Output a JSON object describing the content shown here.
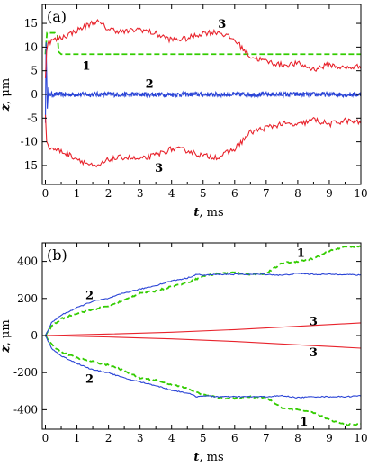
{
  "colors": {
    "red": "#e8232c",
    "green": "#33cc00",
    "blue": "#2a44d6"
  },
  "chart_data": [
    {
      "panel": "(a)",
      "type": "line",
      "xlabel_var": "t",
      "xlabel_unit": ", ms",
      "ylabel_var": "z",
      "ylabel_unit": ", μm",
      "xlim": [
        -0.1,
        10
      ],
      "ylim": [
        -19,
        19
      ],
      "xticks": [
        0,
        1,
        2,
        3,
        4,
        5,
        6,
        7,
        8,
        9,
        10
      ],
      "yticks": [
        -15,
        -10,
        -5,
        0,
        5,
        10,
        15
      ],
      "curve_labels": [
        {
          "text": "3",
          "x": 5.6,
          "y": 14.8
        },
        {
          "text": "1",
          "x": 1.3,
          "y": 6.0
        },
        {
          "text": "2",
          "x": 3.3,
          "y": 2.2
        },
        {
          "text": "3",
          "x": 3.6,
          "y": -15.6
        }
      ],
      "series": [
        {
          "label": "1",
          "color": "red",
          "dash": true,
          "x": [
            0.0,
            0.02,
            0.05,
            0.3,
            0.38,
            0.42,
            0.5,
            10
          ],
          "y": [
            8.5,
            10.5,
            13.0,
            13.0,
            12.5,
            9.0,
            8.5,
            8.5
          ],
          "color_key": "green"
        },
        {
          "label": "2",
          "color_key": "blue",
          "dash": false,
          "noisy": true,
          "base": 0,
          "amp": 0.5,
          "x": [
            0,
            10
          ],
          "y": [
            0,
            0
          ],
          "spike": [
            [
              0.0,
              -6.0
            ],
            [
              0.02,
              11.0
            ],
            [
              0.06,
              -3.0
            ],
            [
              0.1,
              1.5
            ]
          ]
        },
        {
          "label": "3",
          "color_key": "red",
          "dash": false,
          "noisy": true,
          "amp": 0.6,
          "x": [
            0.0,
            0.05,
            0.5,
            1.0,
            1.6,
            2.0,
            2.5,
            3.0,
            3.5,
            4.0,
            4.5,
            5.0,
            5.5,
            6.0,
            6.5,
            7.0,
            7.5,
            8.0,
            8.5,
            9.0,
            9.5,
            10.0
          ],
          "y": [
            4.0,
            11.0,
            12.0,
            13.5,
            15.5,
            13.8,
            13.2,
            13.8,
            12.8,
            11.5,
            11.8,
            13.0,
            13.2,
            11.5,
            8.0,
            7.0,
            6.2,
            6.5,
            5.3,
            6.3,
            5.5,
            6.0
          ]
        },
        {
          "label": "3",
          "color_key": "red",
          "dash": false,
          "noisy": true,
          "amp": 0.6,
          "x": [
            0.0,
            0.05,
            0.5,
            1.0,
            1.6,
            2.0,
            2.5,
            3.0,
            3.5,
            4.0,
            4.5,
            5.0,
            5.5,
            6.0,
            6.5,
            7.0,
            7.5,
            8.0,
            8.5,
            9.0,
            9.5,
            10.0
          ],
          "y": [
            -4.0,
            -11.0,
            -12.0,
            -13.5,
            -15.5,
            -13.8,
            -13.2,
            -13.8,
            -12.8,
            -11.5,
            -11.8,
            -13.0,
            -13.2,
            -11.5,
            -8.0,
            -7.0,
            -6.2,
            -6.5,
            -5.3,
            -6.3,
            -5.5,
            -6.0
          ]
        }
      ]
    },
    {
      "panel": "(b)",
      "type": "line",
      "xlabel_var": "t",
      "xlabel_unit": ", ms",
      "ylabel_var": "z",
      "ylabel_unit": ", μm",
      "xlim": [
        -0.1,
        10
      ],
      "ylim": [
        -505,
        500
      ],
      "xticks": [
        0,
        1,
        2,
        3,
        4,
        5,
        6,
        7,
        8,
        9,
        10
      ],
      "yticks": [
        -400,
        -200,
        0,
        200,
        400
      ],
      "curve_labels": [
        {
          "text": "1",
          "x": 8.1,
          "y": 445
        },
        {
          "text": "2",
          "x": 1.4,
          "y": 215
        },
        {
          "text": "3",
          "x": 8.5,
          "y": 75
        },
        {
          "text": "3",
          "x": 8.5,
          "y": -92
        },
        {
          "text": "2",
          "x": 1.4,
          "y": -235
        },
        {
          "text": "1",
          "x": 8.2,
          "y": -465
        }
      ],
      "series": [
        {
          "label": "1",
          "color_key": "green",
          "dash": true,
          "noisy": true,
          "amp": 4,
          "x": [
            0.0,
            0.2,
            0.5,
            1.0,
            1.5,
            2.0,
            2.5,
            3.0,
            3.5,
            4.0,
            4.5,
            5.0,
            5.5,
            6.0,
            6.5,
            7.0,
            7.5,
            8.0,
            8.5,
            9.0,
            9.5,
            10.0
          ],
          "y": [
            0,
            50,
            90,
            120,
            140,
            160,
            190,
            230,
            240,
            265,
            285,
            320,
            335,
            340,
            330,
            335,
            390,
            400,
            415,
            455,
            480,
            480
          ]
        },
        {
          "label": "1",
          "color_key": "green",
          "dash": true,
          "noisy": true,
          "amp": 4,
          "x": [
            0.0,
            0.2,
            0.5,
            1.0,
            1.5,
            2.0,
            2.5,
            3.0,
            3.5,
            4.0,
            4.5,
            5.0,
            5.5,
            6.0,
            6.5,
            7.0,
            7.5,
            8.0,
            8.5,
            9.0,
            9.5,
            10.0
          ],
          "y": [
            0,
            -50,
            -90,
            -120,
            -140,
            -160,
            -190,
            -230,
            -240,
            -265,
            -285,
            -320,
            -335,
            -340,
            -330,
            -335,
            -390,
            -400,
            -415,
            -455,
            -480,
            -480
          ]
        },
        {
          "label": "2",
          "color_key": "blue",
          "dash": false,
          "noisy": true,
          "amp": 3,
          "x": [
            0.0,
            0.2,
            0.5,
            1.0,
            1.5,
            2.0,
            2.5,
            3.0,
            3.5,
            4.0,
            4.5,
            4.8,
            5.0,
            5.5,
            6.0,
            6.5,
            7.0,
            7.5,
            8.0,
            8.5,
            9.0,
            9.5,
            10.0
          ],
          "y": [
            0,
            70,
            110,
            150,
            185,
            200,
            230,
            250,
            270,
            295,
            310,
            330,
            325,
            330,
            330,
            330,
            330,
            325,
            335,
            330,
            330,
            330,
            325
          ]
        },
        {
          "label": "2",
          "color_key": "blue",
          "dash": false,
          "noisy": true,
          "amp": 3,
          "x": [
            0.0,
            0.2,
            0.5,
            1.0,
            1.5,
            2.0,
            2.5,
            3.0,
            3.5,
            4.0,
            4.5,
            4.8,
            5.0,
            5.5,
            6.0,
            6.5,
            7.0,
            7.5,
            8.0,
            8.5,
            9.0,
            9.5,
            10.0
          ],
          "y": [
            0,
            -70,
            -110,
            -150,
            -185,
            -200,
            -230,
            -250,
            -270,
            -295,
            -310,
            -330,
            -325,
            -330,
            -330,
            -330,
            -330,
            -325,
            -335,
            -330,
            -330,
            -330,
            -325
          ]
        },
        {
          "label": "3",
          "color_key": "red",
          "dash": false,
          "noisy": false,
          "x": [
            0,
            2,
            4,
            6,
            8,
            10
          ],
          "y": [
            0,
            8,
            18,
            32,
            50,
            68
          ]
        },
        {
          "label": "3",
          "color_key": "red",
          "dash": false,
          "noisy": false,
          "x": [
            0,
            2,
            4,
            6,
            8,
            10
          ],
          "y": [
            0,
            -8,
            -18,
            -32,
            -50,
            -68
          ]
        }
      ]
    }
  ]
}
